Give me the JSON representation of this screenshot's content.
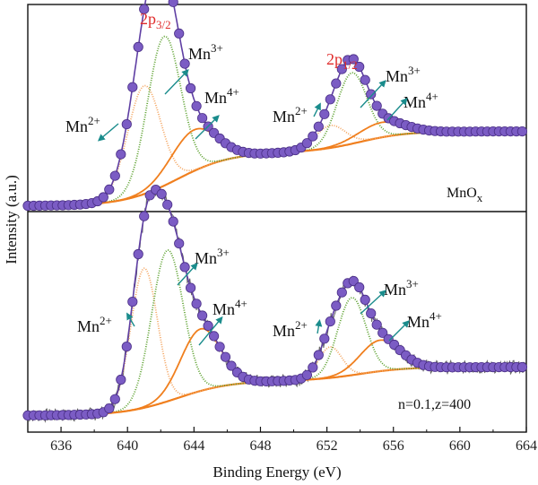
{
  "chart_data": [
    {
      "type": "line",
      "panel": "top",
      "xlabel": "Binding Energy (eV)",
      "ylabel": "Intensity (a.u.)",
      "xlim": [
        634,
        664
      ],
      "x_ticks": [
        "636",
        "640",
        "644",
        "648",
        "652",
        "656",
        "660",
        "664"
      ],
      "sample_label": "MnO",
      "sample_sub": "x",
      "baseline": {
        "start": 0.03,
        "end": 0.43
      },
      "series": [
        {
          "name": "Mn2+",
          "color": "#f4a560",
          "peaks": [
            {
              "center": 641.0,
              "height": 0.58,
              "width": 1.0
            },
            {
              "center": 652.2,
              "height": 0.12,
              "width": 0.9
            }
          ]
        },
        {
          "name": "Mn3+",
          "color": "#5aa02c",
          "peaks": [
            {
              "center": 642.2,
              "height": 0.8,
              "width": 1.0
            },
            {
              "center": 653.5,
              "height": 0.38,
              "width": 0.9
            }
          ]
        },
        {
          "name": "Mn4+",
          "color": "#f07f1e",
          "peaks": [
            {
              "center": 644.0,
              "height": 0.22,
              "width": 1.4
            },
            {
              "center": 655.3,
              "height": 0.08,
              "width": 1.4
            }
          ]
        }
      ],
      "envelope_color": "#5f3fa3",
      "point_color": "#7b5cc4",
      "annotations": {
        "peak_2p32_main": "2p",
        "peak_2p32_sub": "3/2",
        "peak_2p12_main": "2p",
        "peak_2p12_sub": "1/2",
        "mn_main": "Mn",
        "mn2_sup": "2+",
        "mn3_sup": "3+",
        "mn4_sup": "4+"
      }
    },
    {
      "type": "line",
      "panel": "bottom",
      "xlabel": "Binding Energy (eV)",
      "ylabel": "Intensity (a.u.)",
      "xlim": [
        634,
        664
      ],
      "sample_label": "n=0.1,z=400",
      "baseline": {
        "start": 0.03,
        "end": 0.28
      },
      "series": [
        {
          "name": "Mn2+",
          "color": "#f4a560",
          "peaks": [
            {
              "center": 641.0,
              "height": 0.72,
              "width": 0.8
            },
            {
              "center": 652.2,
              "height": 0.16,
              "width": 0.7
            }
          ]
        },
        {
          "name": "Mn3+",
          "color": "#5aa02c",
          "peaks": [
            {
              "center": 642.4,
              "height": 0.78,
              "width": 0.95
            },
            {
              "center": 653.5,
              "height": 0.4,
              "width": 0.85
            }
          ]
        },
        {
          "name": "Mn4+",
          "color": "#f07f1e",
          "peaks": [
            {
              "center": 644.4,
              "height": 0.32,
              "width": 1.2
            },
            {
              "center": 655.2,
              "height": 0.16,
              "width": 1.2
            }
          ]
        }
      ],
      "envelope_color": "#5f3fa3",
      "point_color": "#7b5cc4",
      "raw_color": "#666666",
      "annotations": {
        "mn_main": "Mn",
        "mn2_sup": "2+",
        "mn3_sup": "3+",
        "mn4_sup": "4+"
      }
    }
  ],
  "colors": {
    "arrow": "#1a8c8c",
    "axis": "#111111"
  }
}
